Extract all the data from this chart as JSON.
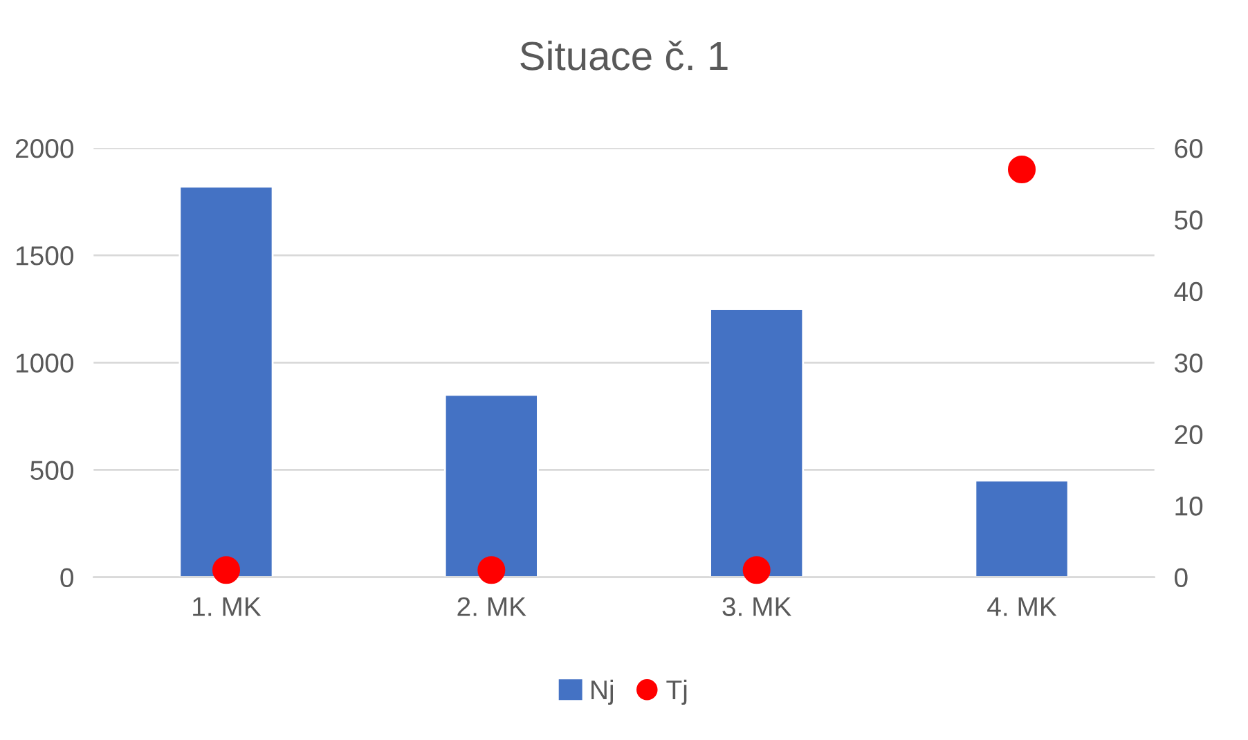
{
  "chart_data": {
    "type": "bar",
    "title": "Situace č. 1",
    "categories": [
      "1. MK",
      "2. MK",
      "3. MK",
      "4. MK"
    ],
    "series": [
      {
        "name": "Nj",
        "color": "#4472c4",
        "values": [
          1820,
          850,
          1250,
          450
        ]
      },
      {
        "name": "Tj",
        "type": "scatter",
        "axis": "y2",
        "marker": "circle",
        "color": "#ff0000",
        "x": [
          "1. MK",
          "2. MK",
          "3. MK",
          "4. MK"
        ],
        "values": [
          1,
          1,
          1,
          57
        ]
      }
    ],
    "ylim": [
      0,
      2000
    ],
    "yticks": [
      0,
      500,
      1000,
      1500,
      2000
    ],
    "y2lim": [
      0,
      60
    ],
    "y2ticks": [
      0,
      10,
      20,
      30,
      40,
      50,
      60
    ],
    "grid": "y",
    "legend": "bottom"
  }
}
